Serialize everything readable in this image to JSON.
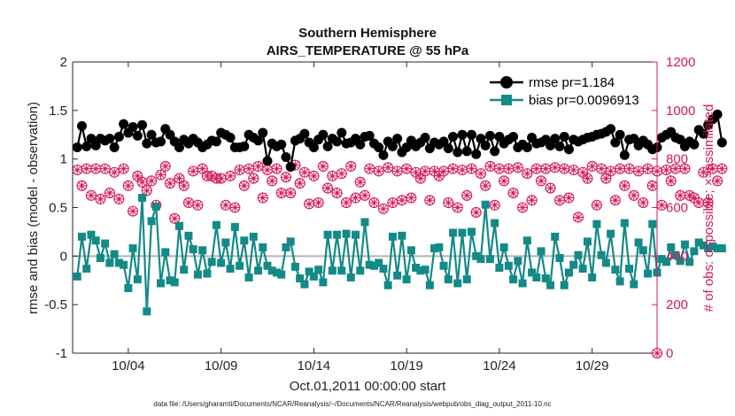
{
  "chart_data": {
    "type": "line",
    "title": "Southern Hemisphere",
    "subtitle": "AIRS_TEMPERATURE @ 55 hPa",
    "xlabel": "Oct.01,2011 00:00:00 start",
    "ylabel_left": "rmse and bias (model - observation)",
    "ylabel_right": "# of obs: o=possible; ×=assimilated",
    "xlim": [
      1,
      32.5
    ],
    "ylim_left": [
      -1,
      2
    ],
    "ylim_right": [
      0,
      1200
    ],
    "x_ticks": [
      4,
      9,
      14,
      19,
      24,
      29
    ],
    "x_tick_labels": [
      "10/04",
      "10/09",
      "10/14",
      "10/19",
      "10/24",
      "10/29"
    ],
    "y_ticks_left": [
      -1,
      -0.5,
      0,
      0.5,
      1,
      1.5,
      2
    ],
    "y_tick_labels_left": [
      "-1",
      "-0.5",
      "0",
      "0.5",
      "1",
      "1.5",
      "2"
    ],
    "y_ticks_right": [
      0,
      200,
      400,
      600,
      800,
      1000,
      1200
    ],
    "y_tick_labels_right": [
      "0",
      "200",
      "400",
      "600",
      "800",
      "1000",
      "1200"
    ],
    "legend_location": "top-right",
    "zero_line": 0,
    "x_start": 1.25,
    "x_step": 0.25,
    "series": [
      {
        "name": "rmse pr=1.184",
        "color": "#000000",
        "marker": "circle",
        "axis": "left",
        "values": [
          1.12,
          1.34,
          1.13,
          1.21,
          1.14,
          1.21,
          1.19,
          1.21,
          1.12,
          1.23,
          1.36,
          1.27,
          1.33,
          1.24,
          1.35,
          1.16,
          1.25,
          1.17,
          1.18,
          1.31,
          1.25,
          1.18,
          1.12,
          1.2,
          1.16,
          1.21,
          1.17,
          1.12,
          1.15,
          1.19,
          1.18,
          1.27,
          1.25,
          1.22,
          1.12,
          1.12,
          1.13,
          1.25,
          1.22,
          1.19,
          1.27,
          0.98,
          1.16,
          1.13,
          1.15,
          1.02,
          0.92,
          1.19,
          1.21,
          1.26,
          1.17,
          1.12,
          1.2,
          1.25,
          1.13,
          1.21,
          1.18,
          1.27,
          1.16,
          1.17,
          1.21,
          1.15,
          1.23,
          1.24,
          1.16,
          1.12,
          1.04,
          1.18,
          1.13,
          1.21,
          1.07,
          1.12,
          1.19,
          1.13,
          1.17,
          1.22,
          1.11,
          1.17,
          1.15,
          1.18,
          1.11,
          1.23,
          1.07,
          1.25,
          1.08,
          1.25,
          1.05,
          1.21,
          1.14,
          1.24,
          1.08,
          1.23,
          1.16,
          1.2,
          1.23,
          1.12,
          1.15,
          1.12,
          1.22,
          1.16,
          1.17,
          1.2,
          1.14,
          1.21,
          1.13,
          1.23,
          1.1,
          1.2,
          1.18,
          1.2,
          1.22,
          1.23,
          1.25,
          1.26,
          1.28,
          1.31,
          1.17,
          1.25,
          1.04,
          1.2,
          1.21,
          1.14,
          1.19,
          1.15,
          1.1,
          1.12,
          1.22,
          1.25,
          1.28,
          1.22,
          1.2,
          1.13,
          1.18,
          1.15,
          1.3,
          1.26,
          1.35,
          1.41,
          1.46,
          1.17
        ]
      },
      {
        "name": "bias pr=0.0096913",
        "color": "#138a87",
        "marker": "square",
        "axis": "left",
        "values": [
          -0.21,
          0.2,
          -0.13,
          0.22,
          0.16,
          -0.02,
          0.13,
          -0.07,
          0.02,
          -0.07,
          -0.09,
          -0.33,
          0.08,
          -0.24,
          0.6,
          -0.57,
          0.36,
          0.51,
          -0.28,
          0.04,
          -0.25,
          -0.27,
          0.31,
          -0.14,
          0.21,
          0.07,
          -0.19,
          0.06,
          -0.18,
          -0.06,
          0.32,
          -0.07,
          0.14,
          -0.13,
          0.3,
          -0.1,
          0.16,
          -0.22,
          0.2,
          -0.15,
          0.09,
          -0.1,
          -0.15,
          -0.17,
          -0.19,
          0.09,
          0.15,
          -0.11,
          -0.23,
          -0.29,
          -0.16,
          -0.21,
          -0.14,
          -0.27,
          0.22,
          -0.15,
          0.22,
          -0.15,
          0.23,
          -0.22,
          0.22,
          -0.15,
          0.35,
          -0.09,
          -0.1,
          -0.07,
          -0.13,
          -0.3,
          0.2,
          -0.2,
          0.21,
          -0.24,
          0.06,
          -0.12,
          -0.15,
          -0.14,
          -0.3,
          0.08,
          0.09,
          -0.1,
          -0.24,
          0.24,
          -0.28,
          0.24,
          -0.24,
          0.25,
          0.0,
          -0.03,
          0.53,
          -0.03,
          0.34,
          -0.12,
          0.09,
          -0.1,
          -0.24,
          -0.05,
          -0.28,
          0.16,
          -0.17,
          -0.22,
          0.05,
          -0.23,
          -0.3,
          0.2,
          -0.02,
          -0.3,
          -0.17,
          -0.09,
          0.01,
          -0.13,
          0.15,
          -0.22,
          0.33,
          0.01,
          -0.07,
          0.23,
          -0.14,
          -0.26,
          0.34,
          -0.13,
          -0.29,
          0.14,
          0.06,
          -0.18,
          0.33,
          -0.17,
          -0.03,
          -0.06,
          0.09,
          0.01,
          -0.05,
          0.12,
          -0.06,
          0.05,
          0.14,
          0.11,
          0.08,
          0.1,
          0.08,
          0.08
        ]
      },
      {
        "name": "# obs possible",
        "color": "#d6195a",
        "marker": "open-circle",
        "axis": "right",
        "values": [
          755,
          690,
          760,
          650,
          760,
          635,
          760,
          660,
          745,
          635,
          760,
          690,
          585,
          730,
          705,
          670,
          710,
          610,
          735,
          770,
          700,
          555,
          720,
          690,
          620,
          750,
          610,
          760,
          730,
          730,
          720,
          720,
          610,
          730,
          600,
          755,
          690,
          760,
          720,
          770,
          640,
          755,
          710,
          760,
          660,
          725,
          660,
          775,
          700,
          745,
          615,
          730,
          620,
          770,
          680,
          730,
          660,
          740,
          620,
          770,
          640,
          705,
          650,
          760,
          620,
          750,
          595,
          765,
          620,
          750,
          630,
          760,
          640,
          745,
          720,
          750,
          630,
          750,
          730,
          750,
          620,
          760,
          600,
          755,
          650,
          760,
          580,
          740,
          690,
          770,
          610,
          760,
          710,
          760,
          660,
          765,
          600,
          740,
          630,
          760,
          710,
          760,
          680,
          765,
          630,
          760,
          640,
          755,
          560,
          745,
          720,
          770,
          610,
          760,
          720,
          750,
          630,
          760,
          690,
          760,
          650,
          750,
          620,
          760,
          690,
          750,
          610,
          755,
          710,
          760,
          650,
          760,
          650,
          640,
          620,
          745,
          620,
          760,
          710,
          760
        ]
      },
      {
        "name": "# obs assimilated",
        "color": "#d6195a",
        "marker": "x",
        "axis": "right",
        "values": [
          755,
          690,
          760,
          650,
          760,
          635,
          760,
          660,
          745,
          635,
          760,
          690,
          585,
          730,
          705,
          670,
          710,
          610,
          735,
          770,
          700,
          555,
          720,
          690,
          620,
          750,
          610,
          760,
          730,
          730,
          720,
          720,
          610,
          730,
          600,
          755,
          690,
          760,
          720,
          770,
          640,
          755,
          710,
          760,
          660,
          725,
          660,
          775,
          700,
          745,
          615,
          730,
          620,
          770,
          680,
          730,
          660,
          740,
          620,
          770,
          640,
          705,
          650,
          760,
          620,
          750,
          595,
          765,
          620,
          750,
          630,
          760,
          640,
          745,
          720,
          750,
          630,
          750,
          730,
          750,
          620,
          760,
          600,
          755,
          650,
          760,
          580,
          740,
          690,
          770,
          610,
          760,
          710,
          760,
          660,
          765,
          600,
          740,
          630,
          760,
          710,
          760,
          680,
          765,
          630,
          760,
          640,
          755,
          560,
          745,
          720,
          770,
          610,
          760,
          720,
          750,
          630,
          760,
          690,
          760,
          650,
          750,
          620,
          760,
          690,
          750,
          610,
          755,
          710,
          760,
          650,
          760,
          650,
          640,
          620,
          745,
          620,
          760,
          710,
          760
        ]
      }
    ],
    "extra_points": [
      {
        "series": "# obs possible",
        "x": 32.5,
        "value": 0
      }
    ],
    "footnote": "data file: /Users/gharamti/Documents/NCAR/Reanalysis/~/Documents/NCAR/Reanalysis/webpub/obs_diag_output_2011-10.nc"
  }
}
